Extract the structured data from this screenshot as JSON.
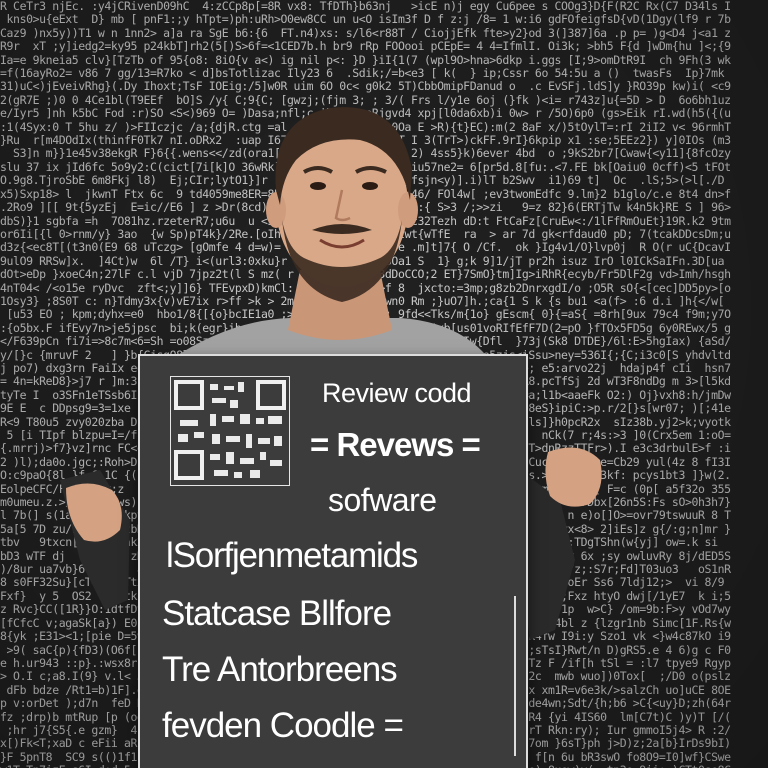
{
  "scene": {
    "description_free": true,
    "colors": {
      "wall_background": "#222222",
      "wall_text": "#e9e9e9",
      "shirt": "#9c9c9c",
      "sign_board": "#3c3c3c",
      "sign_border": "#dcdcdc",
      "sign_text": "#ffffff",
      "skin": "#d7a788",
      "hair": "#3a2a20"
    }
  },
  "sign": {
    "lines": [
      "Review codd",
      "= Revews =",
      "sofware",
      "lSorfjenmetamids",
      "Statcase Bllfore",
      "Tre Antorbreens",
      "fevden Coodle ="
    ]
  }
}
